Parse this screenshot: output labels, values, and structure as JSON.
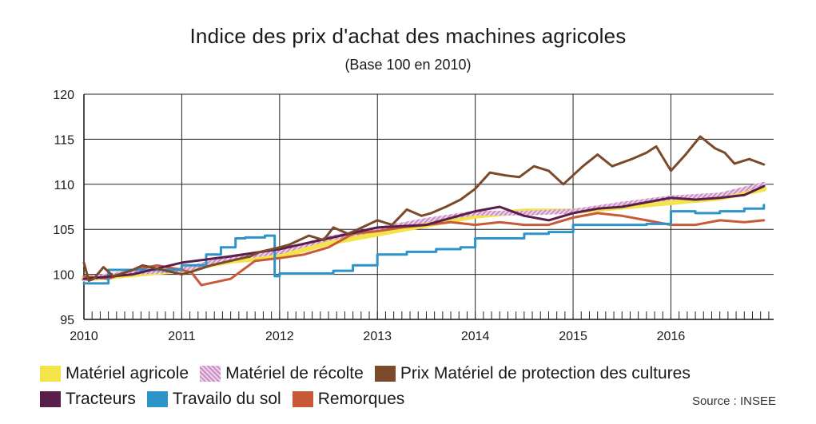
{
  "title": "Indice des prix d'achat des machines agricoles",
  "subtitle": "(Base 100 en 2010)",
  "source": "Source : INSEE",
  "chart_data": {
    "type": "line",
    "title": "Indice des prix d'achat des machines agricoles",
    "subtitle": "(Base 100 en 2010)",
    "xlabel": "",
    "ylabel": "",
    "xlim": [
      2010,
      2017.05
    ],
    "ylim": [
      95,
      120
    ],
    "yticks": [
      95,
      100,
      105,
      110,
      115,
      120
    ],
    "xticks": [
      2010,
      2011,
      2012,
      2013,
      2014,
      2015,
      2016
    ],
    "xtick_labels": [
      "2010",
      "2011",
      "2012",
      "2013",
      "2014",
      "2015",
      "2016"
    ],
    "grid": true,
    "legend_position": "bottom",
    "series": [
      {
        "name": "Matériel agricole",
        "color": "#f3e44a",
        "style": "thick",
        "x": [
          2010,
          2010.5,
          2011,
          2011.5,
          2012,
          2012.5,
          2013,
          2013.5,
          2014,
          2014.5,
          2015,
          2015.5,
          2016,
          2016.5,
          2016.95
        ],
        "y": [
          99.5,
          100.0,
          100.5,
          101.5,
          102.0,
          103.5,
          104.5,
          105.5,
          106.5,
          107.0,
          107.0,
          107.5,
          108.0,
          108.5,
          109.5
        ]
      },
      {
        "name": "Matériel de récolte",
        "color": "#c98fc4",
        "style": "hatch",
        "x": [
          2010,
          2010.5,
          2011,
          2011.5,
          2012,
          2012.5,
          2013,
          2013.5,
          2014,
          2014.5,
          2015,
          2015.5,
          2016,
          2016.5,
          2016.95
        ],
        "y": [
          99.5,
          100.2,
          100.5,
          101.8,
          102.5,
          104.0,
          105.0,
          106.0,
          106.8,
          106.8,
          107.0,
          107.8,
          108.5,
          108.8,
          110.0
        ]
      },
      {
        "name": "Prix Matériel de protection des cultures",
        "color": "#7a4a2a",
        "style": "line",
        "x": [
          2010,
          2010.05,
          2010.1,
          2010.2,
          2010.3,
          2010.5,
          2010.6,
          2010.8,
          2011,
          2011.1,
          2011.3,
          2011.5,
          2011.7,
          2011.8,
          2012,
          2012.1,
          2012.3,
          2012.45,
          2012.55,
          2012.7,
          2012.8,
          2013,
          2013.15,
          2013.3,
          2013.45,
          2013.55,
          2013.7,
          2013.85,
          2014,
          2014.15,
          2014.3,
          2014.45,
          2014.6,
          2014.75,
          2014.9,
          2015.1,
          2015.25,
          2015.4,
          2015.6,
          2015.75,
          2015.85,
          2016,
          2016.15,
          2016.3,
          2016.45,
          2016.55,
          2016.65,
          2016.8,
          2016.95
        ],
        "y": [
          101.3,
          99.3,
          99.5,
          100.8,
          99.8,
          100.5,
          101.0,
          100.5,
          100.0,
          100.3,
          101.0,
          101.5,
          102.0,
          102.5,
          103.0,
          103.3,
          104.3,
          103.8,
          105.2,
          104.5,
          105.0,
          106.0,
          105.5,
          107.2,
          106.5,
          106.8,
          107.5,
          108.3,
          109.5,
          111.3,
          111.0,
          110.8,
          112.0,
          111.5,
          110.0,
          112.0,
          113.3,
          112.0,
          112.8,
          113.5,
          114.2,
          111.5,
          113.3,
          115.3,
          114.0,
          113.5,
          112.3,
          112.8,
          112.2
        ]
      },
      {
        "name": "Tracteurs",
        "color": "#5a1e4a",
        "style": "line",
        "x": [
          2010,
          2010.5,
          2011,
          2011.5,
          2012,
          2012.5,
          2013,
          2013.5,
          2014,
          2014.25,
          2014.5,
          2014.75,
          2015,
          2015.25,
          2015.5,
          2015.75,
          2016,
          2016.25,
          2016.5,
          2016.75,
          2016.95
        ],
        "y": [
          99.5,
          100.0,
          101.3,
          102.0,
          102.8,
          104.0,
          105.2,
          105.5,
          107.0,
          107.5,
          106.5,
          106.0,
          106.8,
          107.3,
          107.5,
          108.0,
          108.5,
          108.3,
          108.5,
          108.8,
          109.8
        ]
      },
      {
        "name": "Travailo du sol",
        "color": "#2e93c9",
        "style": "step",
        "x": [
          2010,
          2010.15,
          2010.25,
          2010.5,
          2010.75,
          2011,
          2011.25,
          2011.4,
          2011.55,
          2011.65,
          2011.85,
          2011.95,
          2012,
          2012.3,
          2012.55,
          2012.75,
          2013,
          2013.15,
          2013.3,
          2013.6,
          2013.85,
          2014,
          2014.25,
          2014.5,
          2014.75,
          2015,
          2015.25,
          2015.5,
          2015.75,
          2016,
          2016.25,
          2016.5,
          2016.75,
          2016.95
        ],
        "y": [
          99.0,
          99.0,
          100.5,
          100.5,
          100.5,
          101.0,
          102.2,
          103.0,
          104.0,
          104.1,
          104.3,
          99.8,
          100.1,
          100.1,
          100.4,
          101.0,
          102.2,
          102.2,
          102.5,
          102.8,
          103.0,
          104.0,
          104.0,
          104.5,
          104.7,
          105.5,
          105.5,
          105.5,
          105.6,
          107.0,
          106.8,
          107.0,
          107.3,
          107.7
        ]
      },
      {
        "name": "Remorques",
        "color": "#c85a3a",
        "style": "line",
        "x": [
          2010,
          2010.25,
          2010.5,
          2010.75,
          2011,
          2011.1,
          2011.2,
          2011.5,
          2011.75,
          2012,
          2012.25,
          2012.5,
          2012.75,
          2013,
          2013.25,
          2013.5,
          2013.75,
          2014,
          2014.25,
          2014.5,
          2014.75,
          2015,
          2015.25,
          2015.5,
          2015.75,
          2016,
          2016.25,
          2016.5,
          2016.75,
          2016.95
        ],
        "y": [
          99.8,
          99.5,
          100.5,
          101.0,
          100.5,
          100.2,
          98.8,
          99.5,
          101.5,
          101.8,
          102.2,
          103.0,
          104.5,
          104.8,
          105.2,
          105.5,
          105.8,
          105.5,
          105.8,
          105.5,
          105.5,
          106.3,
          106.8,
          106.5,
          106.0,
          105.5,
          105.5,
          106.0,
          105.8,
          106.0
        ]
      }
    ]
  },
  "legend": {
    "row1": [
      "Matériel agricole",
      "Matériel de récolte",
      "Prix Matériel de protection des cultures"
    ],
    "row2": [
      "Tracteurs",
      "Travailo du sol",
      "Remorques"
    ]
  }
}
